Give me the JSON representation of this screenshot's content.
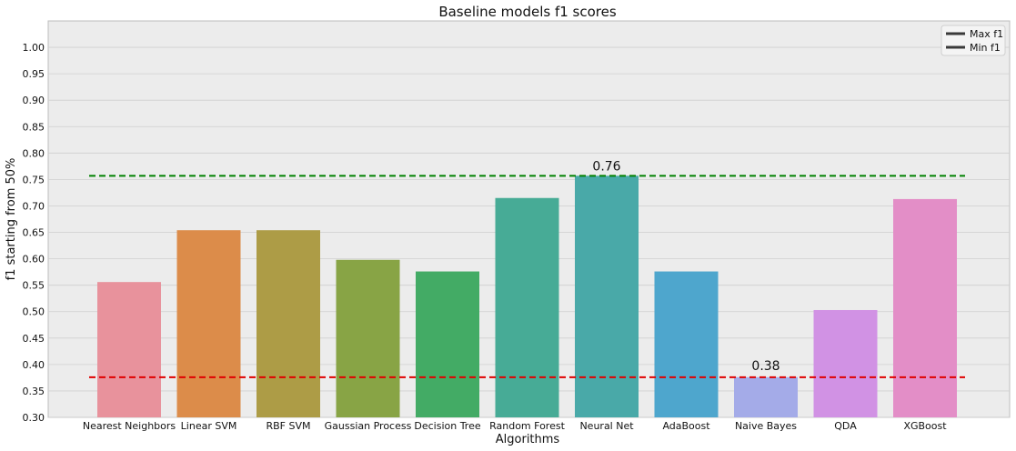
{
  "chart_data": {
    "type": "bar",
    "title": "Baseline models f1 scores",
    "xlabel": "Algorithms",
    "ylabel": "f1 starting from 50%",
    "ylim": [
      0.3,
      1.05
    ],
    "yticks": [
      "0.30",
      "0.35",
      "0.40",
      "0.45",
      "0.50",
      "0.55",
      "0.60",
      "0.65",
      "0.70",
      "0.75",
      "0.80",
      "0.85",
      "0.90",
      "0.95",
      "1.00"
    ],
    "grid": true,
    "legend_position": "top-right",
    "categories": [
      "Nearest Neighbors",
      "Linear SVM",
      "RBF SVM",
      "Gaussian Process",
      "Decision Tree",
      "Random Forest",
      "Neural Net",
      "AdaBoost",
      "Naive Bayes",
      "QDA",
      "XGBoost"
    ],
    "values": [
      0.556,
      0.654,
      0.654,
      0.598,
      0.576,
      0.715,
      0.757,
      0.576,
      0.376,
      0.503,
      0.713
    ],
    "colors": [
      "#e8929c",
      "#dc8c4a",
      "#ad9c46",
      "#88a445",
      "#43ab65",
      "#47ab96",
      "#49a9a8",
      "#4ea6cd",
      "#a4abe8",
      "#d192e4",
      "#e38ec7"
    ],
    "max_line": {
      "name": "Max f1",
      "value": 0.757,
      "color": "#008000",
      "label": "0.76"
    },
    "min_line": {
      "name": "Min f1",
      "value": 0.376,
      "color": "#e00000",
      "label": "0.38"
    },
    "legend_line_color": "#3a3a3a"
  }
}
